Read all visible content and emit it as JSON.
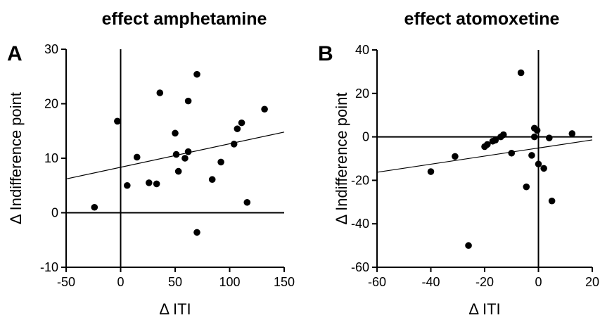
{
  "chart_data": [
    {
      "type": "scatter",
      "panel_letter": "A",
      "title": "effect amphetamine",
      "xlabel": "Δ ITI",
      "ylabel": "Δ Indifference point",
      "xlim": [
        -50,
        150
      ],
      "ylim": [
        -10,
        30
      ],
      "xticks": [
        -50,
        0,
        50,
        100,
        150
      ],
      "yticks": [
        -10,
        0,
        10,
        20,
        30
      ],
      "reference_lines": {
        "x": 0,
        "y": 0
      },
      "grid": false,
      "marker_color": "#000000",
      "points": [
        {
          "x": -24,
          "y": 1
        },
        {
          "x": -3,
          "y": 16.8
        },
        {
          "x": 6,
          "y": 5
        },
        {
          "x": 15,
          "y": 10.2
        },
        {
          "x": 26,
          "y": 5.5
        },
        {
          "x": 33,
          "y": 5.3
        },
        {
          "x": 36,
          "y": 22
        },
        {
          "x": 50,
          "y": 14.6
        },
        {
          "x": 51,
          "y": 10.7
        },
        {
          "x": 53,
          "y": 7.6
        },
        {
          "x": 59,
          "y": 10
        },
        {
          "x": 62,
          "y": 20.5
        },
        {
          "x": 62,
          "y": 11.2
        },
        {
          "x": 70,
          "y": 25.4
        },
        {
          "x": 70,
          "y": -3.6
        },
        {
          "x": 84,
          "y": 6.1
        },
        {
          "x": 92,
          "y": 9.3
        },
        {
          "x": 104,
          "y": 12.6
        },
        {
          "x": 107,
          "y": 15.4
        },
        {
          "x": 111,
          "y": 16.5
        },
        {
          "x": 116,
          "y": 1.9
        },
        {
          "x": 132,
          "y": 19
        }
      ],
      "fit_line": {
        "x": [
          -50,
          150
        ],
        "y": [
          6.2,
          14.8
        ]
      }
    },
    {
      "type": "scatter",
      "panel_letter": "B",
      "title": "effect atomoxetine",
      "xlabel": "Δ ITI",
      "ylabel": "Δ Indifference point",
      "xlim": [
        -60,
        20
      ],
      "ylim": [
        -60,
        40
      ],
      "xticks": [
        -60,
        -40,
        -20,
        0,
        20
      ],
      "yticks": [
        -60,
        -40,
        -20,
        0,
        20,
        40
      ],
      "reference_lines": {
        "x": 0,
        "y": 0
      },
      "grid": false,
      "marker_color": "#000000",
      "points": [
        {
          "x": -40,
          "y": -16
        },
        {
          "x": -31,
          "y": -9
        },
        {
          "x": -26,
          "y": -50
        },
        {
          "x": -20,
          "y": -4.5
        },
        {
          "x": -19,
          "y": -3.5
        },
        {
          "x": -17,
          "y": -2
        },
        {
          "x": -16,
          "y": -1.5
        },
        {
          "x": -14,
          "y": 0
        },
        {
          "x": -13,
          "y": 1
        },
        {
          "x": -10,
          "y": -7.5
        },
        {
          "x": -6.5,
          "y": 29.5
        },
        {
          "x": -4.5,
          "y": -23
        },
        {
          "x": -2.5,
          "y": -8.5
        },
        {
          "x": -1.5,
          "y": 0
        },
        {
          "x": -1.5,
          "y": 4
        },
        {
          "x": -0.5,
          "y": 3
        },
        {
          "x": 0,
          "y": -12.5
        },
        {
          "x": 2,
          "y": -14.5
        },
        {
          "x": 4,
          "y": -0.5
        },
        {
          "x": 5,
          "y": -29.5
        },
        {
          "x": 12.5,
          "y": 1.5
        }
      ],
      "fit_line": {
        "x": [
          -60,
          20
        ],
        "y": [
          -16.3,
          -1.4
        ]
      }
    }
  ]
}
